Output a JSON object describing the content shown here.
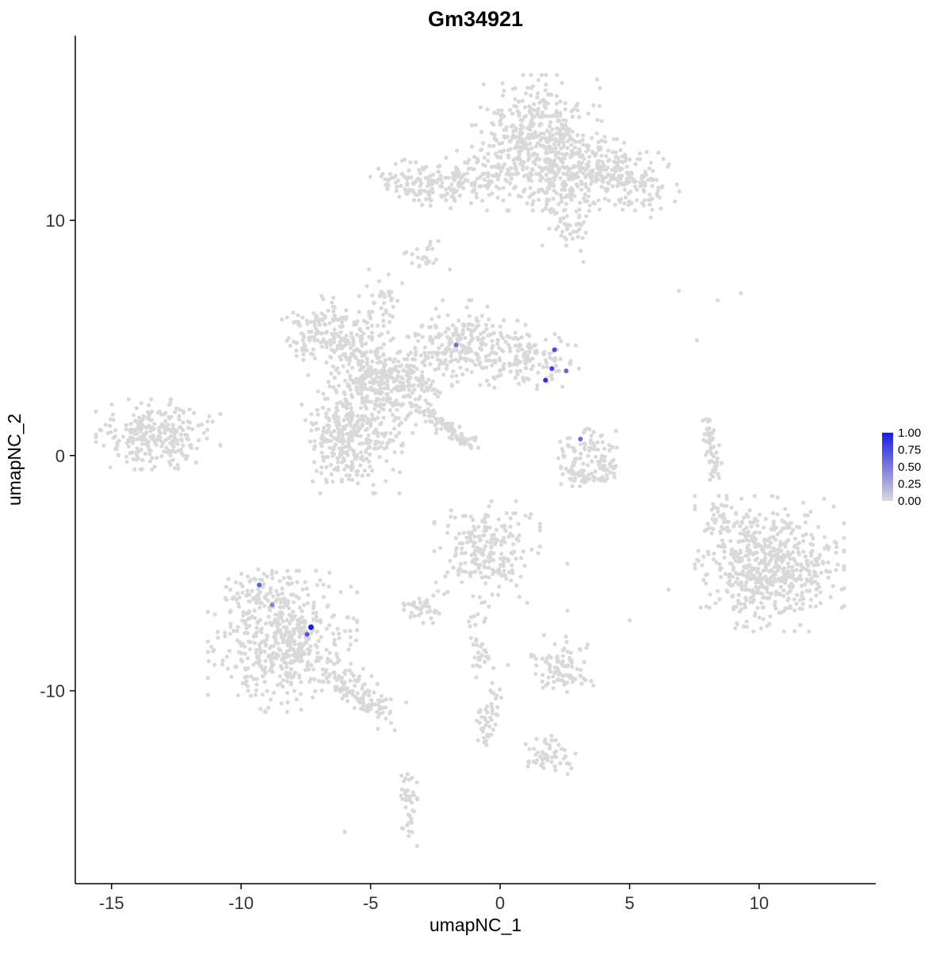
{
  "title": "Gm34921",
  "chart_data": {
    "type": "scatter",
    "title": "Gm34921",
    "subtitle": "",
    "xlabel": "umapNC_1",
    "ylabel": "umapNC_2",
    "xlim": [
      -16.4,
      14.5
    ],
    "ylim": [
      -18.2,
      17.85
    ],
    "xticks": [
      -15,
      -10,
      -5,
      0,
      5,
      10
    ],
    "yticks": [
      -10,
      0,
      10
    ],
    "grid": false,
    "point_color": "#d9d9d9",
    "legend": {
      "position": "right",
      "labels": [
        "1.00",
        "0.75",
        "0.50",
        "0.25",
        "0.00"
      ],
      "low_color": "#d9d9d9",
      "high_color": "#1c1ce0"
    },
    "clusters": [
      {
        "name": "top-main-blob",
        "type": "blob",
        "cx": 1.4,
        "cy": 13.3,
        "sx": 1.05,
        "sy": 1.2,
        "n": 480
      },
      {
        "name": "top-right-ext",
        "type": "blob",
        "cx": 2.9,
        "cy": 11.9,
        "sx": 0.7,
        "sy": 0.6,
        "n": 110
      },
      {
        "name": "top-right-lobe",
        "type": "blob",
        "cx": 5.0,
        "cy": 11.6,
        "sx": 0.8,
        "sy": 0.65,
        "n": 140
      },
      {
        "name": "top-right-bridge",
        "type": "blob",
        "cx": 3.9,
        "cy": 12.5,
        "sx": 0.55,
        "sy": 0.5,
        "n": 60
      },
      {
        "name": "top-arm-down",
        "type": "blob",
        "cx": 2.7,
        "cy": 9.9,
        "sx": 0.45,
        "sy": 0.75,
        "n": 55
      },
      {
        "name": "top-left-bar",
        "type": "blob",
        "cx": -2.6,
        "cy": 11.6,
        "sx": 1.05,
        "sy": 0.45,
        "n": 150
      },
      {
        "name": "top-left-bridge",
        "type": "blob",
        "cx": -0.7,
        "cy": 11.9,
        "sx": 0.8,
        "sy": 0.45,
        "n": 60
      },
      {
        "name": "small-mid-upper",
        "type": "blob",
        "cx": -2.9,
        "cy": 8.4,
        "sx": 0.4,
        "sy": 0.3,
        "n": 24
      },
      {
        "name": "mid-spur",
        "type": "blob",
        "cx": -4.5,
        "cy": 6.6,
        "sx": 0.3,
        "sy": 0.55,
        "n": 35
      },
      {
        "name": "central-left-lobe",
        "type": "blob",
        "cx": -6.5,
        "cy": 5.1,
        "sx": 0.8,
        "sy": 0.7,
        "n": 170
      },
      {
        "name": "central-mid-lobe",
        "type": "blob",
        "cx": -5.2,
        "cy": 3.6,
        "sx": 0.7,
        "sy": 0.8,
        "n": 150
      },
      {
        "name": "central-lower-blob",
        "type": "blob",
        "cx": -5.8,
        "cy": 0.8,
        "sx": 0.85,
        "sy": 1.0,
        "n": 300
      },
      {
        "name": "central-core",
        "type": "blob",
        "cx": -3.9,
        "cy": 3.0,
        "sx": 0.85,
        "sy": 0.85,
        "n": 250
      },
      {
        "name": "central-upper-right",
        "type": "blob",
        "cx": -1.3,
        "cy": 4.8,
        "sx": 0.95,
        "sy": 0.75,
        "n": 210
      },
      {
        "name": "central-right-arm",
        "type": "blob",
        "cx": 1.1,
        "cy": 4.0,
        "sx": 1.0,
        "sy": 0.55,
        "n": 130
      },
      {
        "name": "central-streak",
        "type": "line",
        "x1": -2.9,
        "y1": 1.9,
        "x2": -1.0,
        "y2": 0.4,
        "jitter": 0.16,
        "n": 80
      },
      {
        "name": "far-left-cluster",
        "type": "blob",
        "cx": -13.2,
        "cy": 0.9,
        "sx": 1.0,
        "sy": 0.62,
        "n": 270
      },
      {
        "name": "horseshoe-left",
        "type": "blob",
        "cx": 2.8,
        "cy": -0.3,
        "sx": 0.32,
        "sy": 0.42,
        "n": 35
      },
      {
        "name": "horseshoe-right",
        "type": "blob",
        "cx": 4.0,
        "cy": -0.35,
        "sx": 0.3,
        "sy": 0.4,
        "n": 35
      },
      {
        "name": "horseshoe-bottom",
        "type": "line",
        "x1": 2.6,
        "y1": -0.9,
        "x2": 4.2,
        "y2": -0.9,
        "jitter": 0.15,
        "n": 28
      },
      {
        "name": "horseshoe-top",
        "type": "blob",
        "cx": 3.3,
        "cy": 0.5,
        "sx": 0.5,
        "sy": 0.3,
        "n": 40
      },
      {
        "name": "right-thin-arc",
        "type": "line",
        "x1": 8.0,
        "y1": 1.5,
        "x2": 8.3,
        "y2": -0.8,
        "jitter": 0.12,
        "n": 55
      },
      {
        "name": "right-large-cluster",
        "type": "blob",
        "cx": 10.4,
        "cy": -4.6,
        "sx": 1.2,
        "sy": 1.2,
        "n": 580
      },
      {
        "name": "right-satellite",
        "type": "blob",
        "cx": 8.6,
        "cy": -2.8,
        "sx": 0.45,
        "sy": 0.45,
        "n": 45
      },
      {
        "name": "bottom-left-cluster",
        "type": "blob",
        "cx": -8.4,
        "cy": -7.9,
        "sx": 1.2,
        "sy": 1.25,
        "n": 520
      },
      {
        "name": "bottom-left-top",
        "type": "blob",
        "cx": -9.4,
        "cy": -5.8,
        "sx": 0.55,
        "sy": 0.4,
        "n": 55
      },
      {
        "name": "bottom-left-tail",
        "type": "line",
        "x1": -6.4,
        "y1": -9.4,
        "x2": -4.4,
        "y2": -10.9,
        "jitter": 0.35,
        "n": 110
      },
      {
        "name": "bottom-center-blob",
        "type": "blob",
        "cx": -0.5,
        "cy": -4.1,
        "sx": 0.85,
        "sy": 0.9,
        "n": 210
      },
      {
        "name": "bottom-center-satellite",
        "type": "blob",
        "cx": -2.9,
        "cy": -6.4,
        "sx": 0.4,
        "sy": 0.3,
        "n": 40
      },
      {
        "name": "bottom-center-arm",
        "type": "line",
        "x1": -1.0,
        "y1": -6.2,
        "x2": -0.6,
        "y2": -9.2,
        "jitter": 0.25,
        "n": 40
      },
      {
        "name": "bottom-mid-cluster",
        "type": "blob",
        "cx": 2.4,
        "cy": -8.9,
        "sx": 0.5,
        "sy": 0.6,
        "n": 90
      },
      {
        "name": "bottom-arm-2",
        "type": "line",
        "x1": -0.2,
        "y1": -9.8,
        "x2": -0.6,
        "y2": -12.2,
        "jitter": 0.22,
        "n": 45
      },
      {
        "name": "bottom-small-cluster",
        "type": "blob",
        "cx": 1.9,
        "cy": -12.8,
        "sx": 0.5,
        "sy": 0.45,
        "n": 55
      },
      {
        "name": "bottom-thin-line",
        "type": "line",
        "x1": -3.6,
        "y1": -13.4,
        "x2": -3.5,
        "y2": -16.2,
        "jitter": 0.15,
        "n": 40
      },
      {
        "name": "scattered-singles",
        "type": "singles",
        "pts": [
          [
            6.9,
            7.0
          ],
          [
            8.4,
            6.6
          ],
          [
            9.3,
            6.9
          ],
          [
            7.6,
            4.9
          ],
          [
            2.6,
            -4.6
          ],
          [
            2.6,
            -6.6
          ],
          [
            5.0,
            -7.0
          ],
          [
            6.5,
            -5.7
          ],
          [
            -6.0,
            -16.0
          ],
          [
            -3.2,
            -16.6
          ],
          [
            7.9,
            -3.2
          ],
          [
            0.3,
            -8.9
          ]
        ]
      }
    ],
    "highlighted_cells": [
      {
        "x": -1.7,
        "y": 4.7,
        "value": 0.55
      },
      {
        "x": 2.1,
        "y": 4.5,
        "value": 0.75
      },
      {
        "x": 2.0,
        "y": 3.7,
        "value": 0.8
      },
      {
        "x": 2.55,
        "y": 3.6,
        "value": 0.6
      },
      {
        "x": 1.75,
        "y": 3.2,
        "value": 0.9
      },
      {
        "x": 3.1,
        "y": 0.7,
        "value": 0.6
      },
      {
        "x": -9.3,
        "y": -5.5,
        "value": 0.65
      },
      {
        "x": -8.8,
        "y": -6.35,
        "value": 0.45
      },
      {
        "x": -7.3,
        "y": -7.3,
        "value": 1.0,
        "r": 3.5
      },
      {
        "x": -7.45,
        "y": -7.6,
        "value": 0.7
      }
    ]
  }
}
